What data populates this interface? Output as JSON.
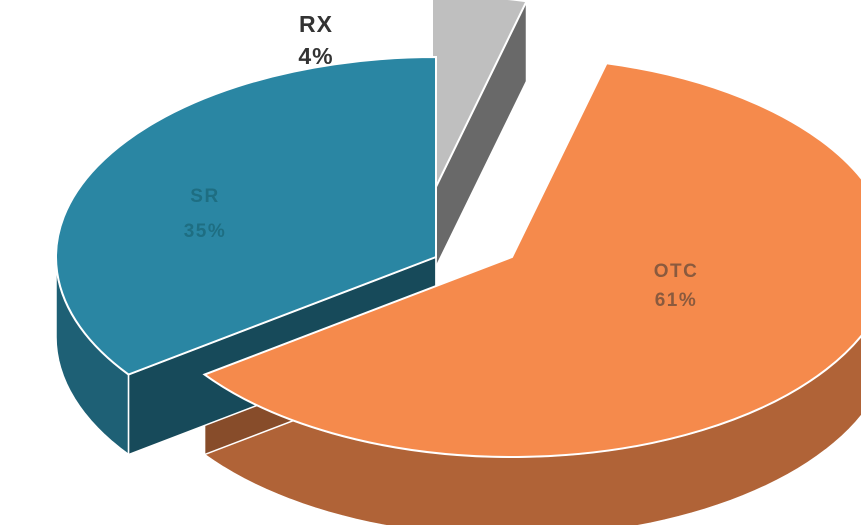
{
  "chart_data": {
    "type": "pie",
    "title": "",
    "slices": [
      {
        "label": "OTC",
        "value": 61,
        "value_label": "61%",
        "color": "#f58a4c",
        "label_color": "#8a5a3e"
      },
      {
        "label": "SR",
        "value": 35,
        "value_label": "35%",
        "color": "#2a86a3",
        "label_color": "#1e6e82"
      },
      {
        "label": "RX",
        "value": 4,
        "value_label": "4%",
        "color": "#bfbfbf",
        "label_color": "#333333"
      }
    ],
    "style": "3d-exploded",
    "legend": "none"
  }
}
